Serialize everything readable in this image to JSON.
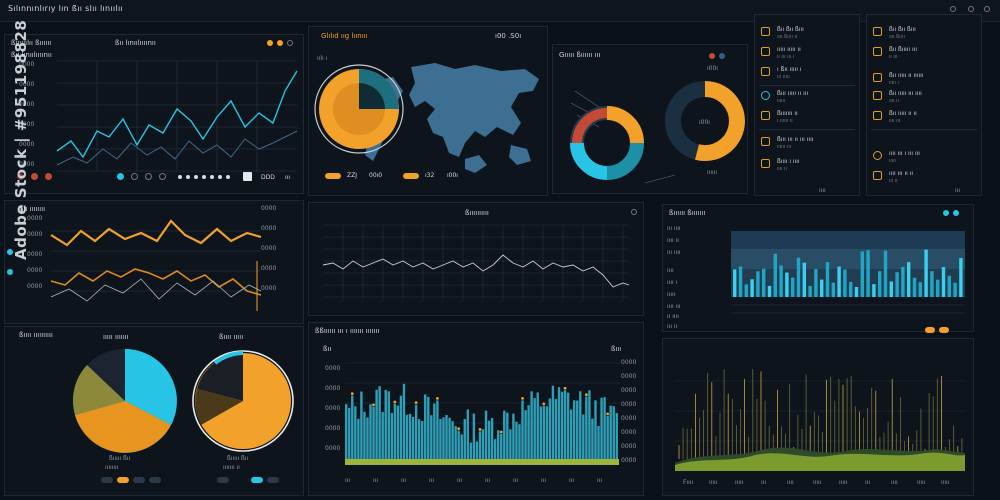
{
  "app": {
    "title": "Sılınnınlırıy lın ßıı slıı lınıılıı"
  },
  "watermark": {
    "text": "Adobe Stock | #951198828"
  },
  "colors": {
    "bg": "#0b1118",
    "panel": "#0d141b",
    "orange": "#f2a12a",
    "cyan": "#28c4e6",
    "teal": "#1d6f80",
    "blue": "#4a7fa3"
  },
  "panel_line": {
    "title": "ßıı lınıılıııınıı",
    "subtitle": "ßıııııılıı ßıııııı",
    "y_ticks": [
      "0000",
      "0000",
      "0000",
      "0000",
      "0000",
      "0000"
    ],
    "footer_values": [
      "DDD",
      "ııı"
    ]
  },
  "panel_map": {
    "title": "Glılıd ııg lıınııı",
    "subtitle": "ıılı ı",
    "header_value": "ı00 .S0ı",
    "stats": [
      {
        "label": "ı",
        "value": "ZZJ"
      },
      {
        "label": "ı",
        "value": "00ı0"
      },
      {
        "label": "ı",
        "value": "ı32"
      },
      {
        "label": "ı",
        "value": "ı00ı"
      }
    ]
  },
  "panel_donut": {
    "title": "Gııııı ßıııııı ııı",
    "small_label": "ı00ı",
    "center_label": "ı00ı",
    "footer": "ıııııı"
  },
  "panel_list1": {
    "items": [
      {
        "title": "ßıı ßıı ßııı",
        "sub": "ıııı ßıııı ıı"
      },
      {
        "title": "ııııı ııııı ıı",
        "sub": "ıı ııı ııı ı"
      },
      {
        "title": "ı ßıı ııııı ı",
        "sub": "ııı ııııı"
      },
      {
        "title": "ßııı ııııı ıı ııı",
        "sub": "ıııııı"
      },
      {
        "title": "ßııııııı ıı",
        "sub": "ı ıııııı ıı"
      },
      {
        "title": "ßııı ııı ıı ııı ıııı",
        "sub": "ıııııı ııı"
      },
      {
        "title": "ßıııı ı ıııı",
        "sub": "ıııı ıı"
      }
    ],
    "footer": "ıııı"
  },
  "panel_list2": {
    "items": [
      {
        "title": "ßıı ßıı ßııı",
        "sub": "ıııı ßıııı"
      },
      {
        "title": "ßıı ßııııı ııı",
        "sub": "ıı ııı"
      },
      {
        "title": "ßıı ııııı ıı ıııııı",
        "sub": "ııııı ı"
      },
      {
        "title": "ßıı ııııı ııı ıııı",
        "sub": "ıııı ıı"
      },
      {
        "title": "ßıı ııııı ıı ıı",
        "sub": "ıııı ııı"
      },
      {
        "title": "ıııı ııı ı ııı ııı",
        "sub": "ııııı"
      },
      {
        "title": "ıııı ııı ıı ıı",
        "sub": "ııı ıı"
      }
    ],
    "footer": "ııı"
  },
  "panel_wave": {
    "title": "ßıı ıııııııı",
    "y_ticks": [
      "0000",
      "0000",
      "0000",
      "0000",
      "0000"
    ]
  },
  "panel_grid": {
    "title": "ßıııııııııı"
  },
  "panel_bars": {
    "title": "ßıııııı ßııııııı",
    "left_labels": [
      "ııı ıııı",
      "ıııı ıı",
      "ııı ıııı",
      "ıııı",
      "ıııı ı",
      "ııııı",
      "ıııı ııı",
      "ıı ıııı",
      "ııı ıı"
    ]
  },
  "panel_pies": {
    "title": "ßıııı ıııııııııı",
    "pie1_title": "ııııı ııııııı",
    "pie1_footer": "ßııııı ßıı",
    "pie1_sub": "ıııııııı",
    "pie2_title": "ßıııı ııııı",
    "pie2_footer": "ßııııı ßıı",
    "pie2_sub": "ııııııı ıı"
  },
  "panel_histo": {
    "title": "ßßıııııı ııı ı ııııııı ııııııı",
    "left_title": "ßıı",
    "right_tag": "ßııı",
    "y_ticks": [
      "0000",
      "0000",
      "0000",
      "0000",
      "0000",
      "0000",
      "0000",
      "0000"
    ],
    "x_ticks": [
      "ııı",
      "ııı",
      "ııı",
      "ııı",
      "ııı",
      "ııı",
      "ııı",
      "ııı",
      "ııı",
      "ııı"
    ]
  },
  "panel_spikes": {
    "x_ticks": [
      "Fıııı",
      "ııııı",
      "ııııı",
      "ııı",
      "ıııı",
      "ııııı",
      "ııııı",
      "ııı",
      "ıııı",
      "ııııı",
      "ııııı"
    ]
  }
}
